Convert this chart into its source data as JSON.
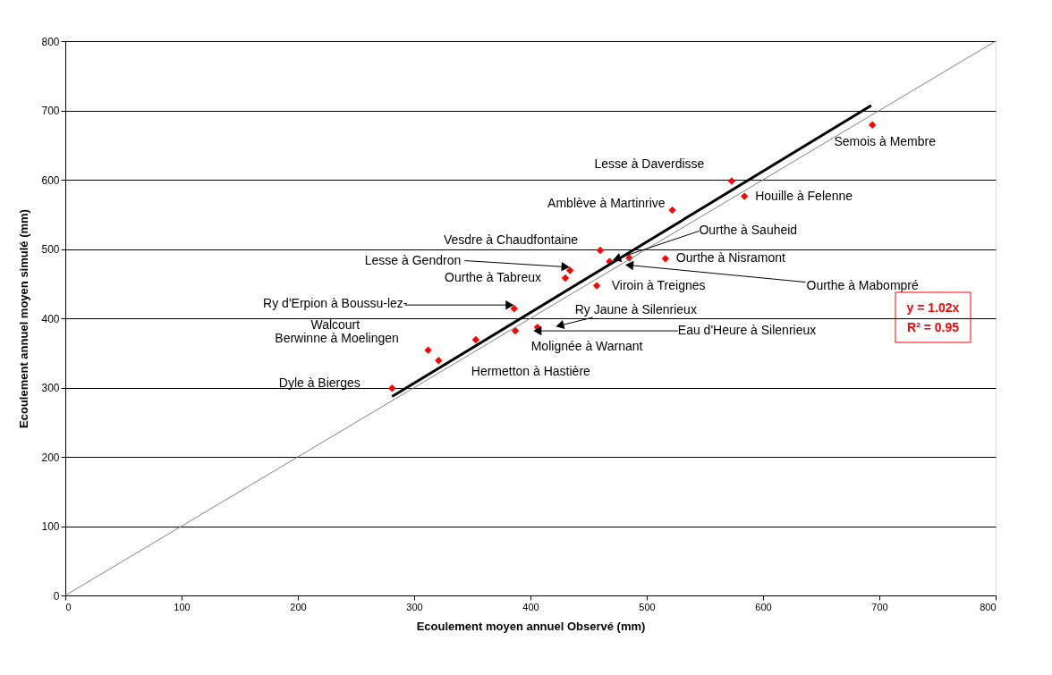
{
  "chart_data": {
    "type": "scatter",
    "xlabel": "Ecoulement moyen annuel Observé (mm)",
    "ylabel": "Ecoulement annuel moyen simulé (mm)",
    "xlim": [
      0,
      800
    ],
    "xticks": [
      0,
      100,
      200,
      300,
      400,
      500,
      600,
      700,
      800
    ],
    "ylim": [
      0,
      800
    ],
    "yticks": [
      0,
      100,
      200,
      300,
      400,
      500,
      600,
      700,
      800
    ],
    "grid": "y",
    "series": [
      {
        "marker": "diamond",
        "color": "#ff0000",
        "x": [
          281,
          312,
          321,
          353,
          387,
          406,
          386,
          430,
          434,
          457,
          460,
          468,
          485,
          516,
          522,
          573,
          584,
          694
        ],
        "values": [
          299,
          354,
          339,
          369,
          382,
          387,
          414,
          458,
          469,
          447,
          498,
          482,
          487,
          486,
          556,
          598,
          576,
          679
        ]
      },
      {
        "type": "line",
        "line_style": "solid",
        "marker": "none",
        "color": "#000000",
        "x": [
          281,
          693
        ],
        "values": [
          287,
          707
        ]
      },
      {
        "type": "line",
        "line_style": "solid",
        "marker": "none",
        "color": "#808080",
        "x": [
          0,
          800
        ],
        "values": [
          0,
          800
        ]
      }
    ],
    "annotations": [
      {
        "text": "Lesse à Daverdisse",
        "x": 573,
        "y": 598
      },
      {
        "text": "Amblève à Martinrive",
        "x": 522,
        "y": 556
      },
      {
        "text": "Houille à Felenne",
        "x": 584,
        "y": 576
      },
      {
        "text": "Semois à Membre",
        "x": 694,
        "y": 679
      },
      {
        "text": "Vesdre à Chaudfontaine",
        "x": 460,
        "y": 498
      },
      {
        "text": "Ourthe à Sauheid",
        "x": 468,
        "y": 482
      },
      {
        "text": "Lesse à Gendron",
        "x": 434,
        "y": 469
      },
      {
        "text": "Ourthe à Nisramont",
        "x": 516,
        "y": 486
      },
      {
        "text": "Ourthe à Tabreux",
        "x": 430,
        "y": 458
      },
      {
        "text": "Viroin à Treignes",
        "x": 457,
        "y": 447
      },
      {
        "text": "Ourthe à Mabompré",
        "x": 485,
        "y": 487
      },
      {
        "text": "Ry d'Erpion à Boussu-lez-\nWalcourt",
        "x": 386,
        "y": 414
      },
      {
        "text": "Ry Jaune à Silenrieux",
        "x": 406,
        "y": 387
      },
      {
        "text": "Eau d'Heure à Silenrieux",
        "x": 406,
        "y": 387
      },
      {
        "text": "Molignée à Warnant",
        "x": 387,
        "y": 382
      },
      {
        "text": "Berwinne à Moelingen",
        "x": 312,
        "y": 354
      },
      {
        "text": "Hermetton à Hastière",
        "x": 321,
        "y": 339
      },
      {
        "text": "Dyle à Bierges",
        "x": 281,
        "y": 299
      },
      "y = 1.02x\nR² = 0.95"
    ]
  }
}
